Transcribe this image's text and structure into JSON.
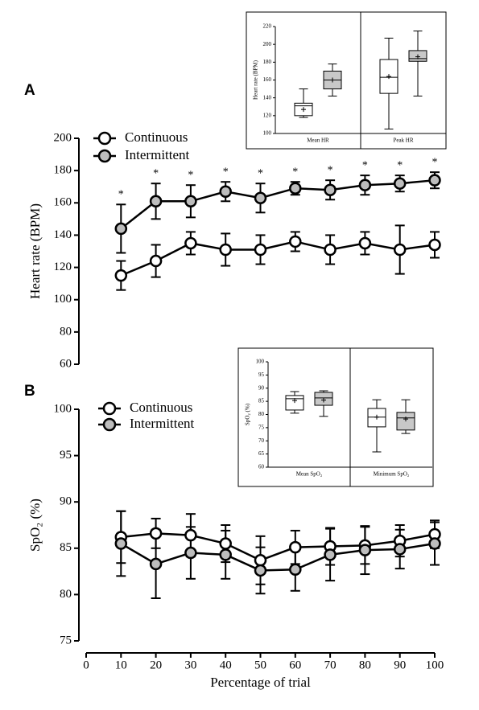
{
  "chart_data": [
    {
      "type": "line",
      "label": "A",
      "ylabel": "Heart rate (BPM)",
      "x": [
        10,
        20,
        30,
        40,
        50,
        60,
        70,
        80,
        90,
        100
      ],
      "xlim": [
        0,
        100
      ],
      "ylim": [
        60,
        200
      ],
      "yticks": [
        60,
        80,
        100,
        120,
        140,
        160,
        180,
        200
      ],
      "series": [
        {
          "name": "Continuous",
          "color": "#ffffff",
          "values": [
            115,
            124,
            135,
            131,
            131,
            136,
            131,
            135,
            131,
            134
          ],
          "errors": [
            9,
            10,
            7,
            10,
            9,
            6,
            9,
            7,
            15,
            8
          ]
        },
        {
          "name": "Intermittent",
          "color": "#bdbdbd",
          "values": [
            144,
            161,
            161,
            167,
            163,
            169,
            168,
            171,
            172,
            174
          ],
          "errors": [
            15,
            11,
            10,
            6,
            9,
            4,
            6,
            6,
            5,
            5
          ]
        }
      ],
      "annotations": [
        "*",
        "*",
        "*",
        "*",
        "*",
        "*",
        "*",
        "*",
        "*",
        "*"
      ]
    },
    {
      "type": "box",
      "ylabel": "Heart rate (BPM)",
      "categories": [
        "Mean HR",
        "Peak HR"
      ],
      "ylim": [
        100,
        220
      ],
      "yticks": [
        100,
        120,
        140,
        160,
        180,
        200,
        220
      ],
      "series": [
        {
          "color": "#ffffff",
          "min": [
            118,
            105
          ],
          "q1": [
            120,
            145
          ],
          "median": [
            131,
            163
          ],
          "q3": [
            134,
            183
          ],
          "max": [
            150,
            207
          ],
          "mean": [
            127,
            164
          ]
        },
        {
          "color": "#c8c8c8",
          "min": [
            142,
            142
          ],
          "q1": [
            150,
            181
          ],
          "median": [
            160,
            184
          ],
          "q3": [
            170,
            193
          ],
          "max": [
            178,
            215
          ],
          "mean": [
            160,
            186
          ]
        }
      ]
    },
    {
      "type": "line",
      "label": "B",
      "ylabel": "SpO₂ (%)",
      "xlabel": "Percentage of trial",
      "x": [
        10,
        20,
        30,
        40,
        50,
        60,
        70,
        80,
        90,
        100
      ],
      "xlim": [
        0,
        100
      ],
      "xticks": [
        0,
        10,
        20,
        30,
        40,
        50,
        60,
        70,
        80,
        90,
        100
      ],
      "ylim": [
        75,
        100
      ],
      "yticks": [
        75,
        80,
        85,
        90,
        95,
        100
      ],
      "series": [
        {
          "name": "Continuous",
          "color": "#ffffff",
          "values": [
            86.2,
            86.6,
            86.4,
            85.5,
            83.7,
            85.1,
            85.2,
            85.3,
            85.8,
            86.5
          ],
          "errors": [
            2.8,
            1.6,
            2.3,
            2,
            2.6,
            1.8,
            2,
            2,
            1.7,
            1.5
          ]
        },
        {
          "name": "Intermittent",
          "color": "#bdbdbd",
          "values": [
            85.5,
            83.3,
            84.5,
            84.3,
            82.6,
            82.7,
            84.3,
            84.8,
            84.9,
            85.5
          ],
          "errors": [
            3.5,
            3.7,
            2.8,
            2.6,
            2.5,
            2.3,
            2.8,
            2.6,
            2.1,
            2.3
          ]
        }
      ]
    },
    {
      "type": "box",
      "ylabel": "SpO₂ (%)",
      "categories": [
        "Mean SpO₂",
        "Minimum SpO₂"
      ],
      "ylim": [
        60,
        100
      ],
      "yticks": [
        60,
        65,
        70,
        75,
        80,
        85,
        90,
        95,
        100
      ],
      "series": [
        {
          "color": "#ffffff",
          "min": [
            80.5,
            65.8
          ],
          "q1": [
            81.7,
            75.3
          ],
          "median": [
            86,
            79
          ],
          "q3": [
            87.2,
            82.3
          ],
          "max": [
            88.7,
            85.6
          ],
          "mean": [
            85.3,
            79
          ]
        },
        {
          "color": "#c8c8c8",
          "min": [
            79.3,
            72.8
          ],
          "q1": [
            83.5,
            74.1
          ],
          "median": [
            86.3,
            78.7
          ],
          "q3": [
            88.4,
            80.8
          ],
          "max": [
            89,
            85.6
          ],
          "mean": [
            85.5,
            78.3
          ]
        }
      ]
    }
  ]
}
